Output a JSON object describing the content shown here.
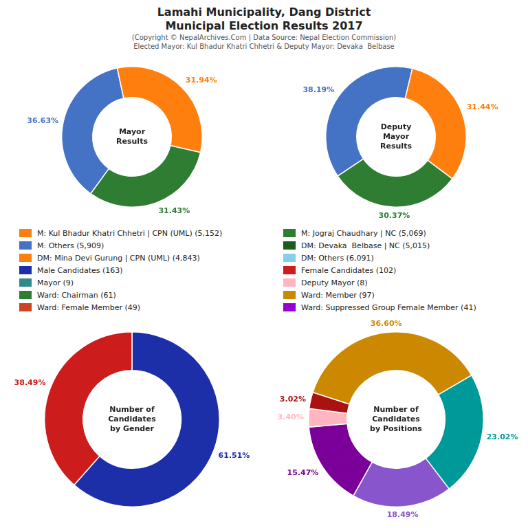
{
  "title": [
    "Lamahi Municipality, Dang District",
    "Municipal Election Results 2017"
  ],
  "subtitle": [
    "(Copyright © NepalArchives.Com | Data Source: Nepal Election Commission)",
    "Elected Mayor: Kul Bhadur Khatri Chhetri & Deputy Mayor: Devaka  Belbase"
  ],
  "annotations": [
    [
      {
        "text": "M: Kul Bhadur Khatri Chhetri | CPN (UML) (5,152)",
        "color": "#FF7F0E"
      },
      {
        "text": "M: Others (5,909)",
        "color": "#4472C4"
      },
      {
        "text": "DM: Mina Devi Gurung | CPN (UML) (4,843)",
        "color": "#FF7F0E"
      },
      {
        "text": "Male Candidates (163)",
        "color": "#1C2EA8"
      },
      {
        "text": "Mayor (9)",
        "color": "#2E8B8B"
      },
      {
        "text": "Ward: Chairman (61)",
        "color": "#2E7D32"
      },
      {
        "text": "Ward: Female Member (49)",
        "color": "#CC4422"
      }
    ],
    [
      {
        "text": "M: Jograj Chaudhary | NC (5,069)",
        "color": "#2E7D32"
      },
      {
        "text": "DM: Devaka  Belbase | NC (5,015)",
        "color": "#1A5C1A"
      },
      {
        "text": "DM: Others (6,091)",
        "color": "#87CEEB"
      },
      {
        "text": "Female Candidates (102)",
        "color": "#CC1C1C"
      },
      {
        "text": "Deputy Mayor (8)",
        "color": "#FFB6C1"
      },
      {
        "text": "Ward: Member (97)",
        "color": "#CC8800"
      },
      {
        "text": "Ward: Suppressed Group Female Member (41)",
        "color": "#9400D3"
      }
    ]
  ],
  "chart_data": [
    {
      "type": "doughnut",
      "title": "Mayor\nResults",
      "values": [
        36.63,
        31.94,
        31.43
      ],
      "value_labels": [
        "36.63%",
        "31.94%",
        "31.43%"
      ],
      "colors": [
        "#4472C4",
        "#FF7F0E",
        "#2E7D32"
      ],
      "data_labels": true
    },
    {
      "type": "doughnut",
      "title": "Deputy\nMayor\nResults",
      "values": [
        38.19,
        31.44,
        30.37
      ],
      "value_labels": [
        "38.19%",
        "31.44%",
        "30.37%"
      ],
      "colors": [
        "#4472C4",
        "#FF7F0E",
        "#2E7D32"
      ],
      "data_labels": true
    },
    {
      "type": "doughnut",
      "title": "Number of\nCandidates\nby Gender",
      "values": [
        61.51,
        38.49
      ],
      "value_labels": [
        "61.51%",
        "38.49%"
      ],
      "colors": [
        "#1C2EA8",
        "#CC1C1C"
      ],
      "data_labels": true
    },
    {
      "type": "doughnut",
      "title": "Number of\nCandidates\nby Positions",
      "values": [
        36.6,
        23.02,
        18.49,
        15.47,
        3.4,
        3.02
      ],
      "value_labels": [
        "36.60%",
        "23.02%",
        "18.49%",
        "15.47%",
        "3.40%",
        "3.02%"
      ],
      "colors": [
        "#CC8800",
        "#009999",
        "#8855CC",
        "#7B0099",
        "#FFB6C1",
        "#AA1111"
      ],
      "data_labels": true
    }
  ]
}
